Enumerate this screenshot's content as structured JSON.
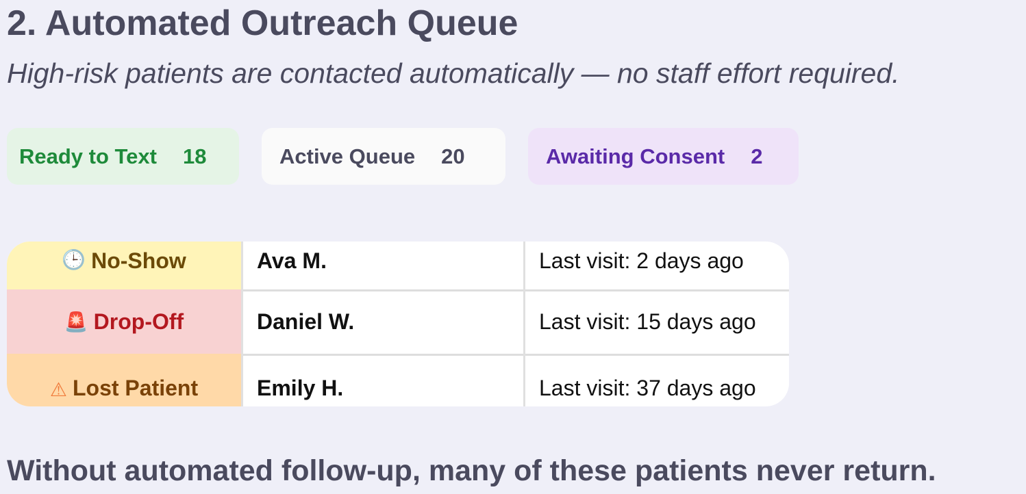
{
  "header": {
    "title": "2. Automated Outreach Queue",
    "subtitle": "High-risk patients are contacted automatically — no staff effort required."
  },
  "stats": [
    {
      "label": "Ready to Text",
      "count": "18",
      "color": "#1e8a3a"
    },
    {
      "label": "Active Queue",
      "count": "20",
      "color": "#4a4a5e"
    },
    {
      "label": "Awaiting Consent",
      "count": "2",
      "color": "#5a2aa8"
    }
  ],
  "patients": [
    {
      "status": "No-Show",
      "icon": "clock-icon",
      "icon_glyph": "🕒",
      "name": "Ava M.",
      "last_visit": "Last visit: 2 days ago"
    },
    {
      "status": "Drop-Off",
      "icon": "siren-icon",
      "icon_glyph": "🚨",
      "name": "Daniel W.",
      "last_visit": "Last visit: 15 days ago"
    },
    {
      "status": "Lost Patient",
      "icon": "warning-icon",
      "icon_glyph": "⚠",
      "name": "Emily H.",
      "last_visit": "Last visit: 37 days ago"
    }
  ],
  "footer": {
    "text": "Without automated follow-up, many of these patients never return."
  }
}
